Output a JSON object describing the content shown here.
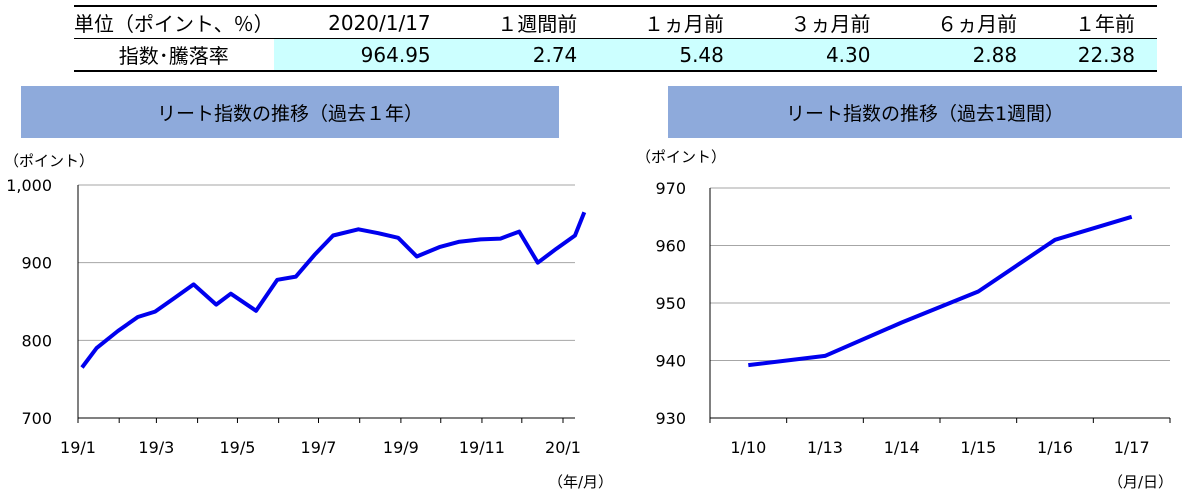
{
  "table": {
    "header": [
      "単位（ポイント、％）",
      "2020/1/17",
      "１週間前",
      "１ヵ月前",
      "３ヵ月前",
      "６ヵ月前",
      "１年前"
    ],
    "row_label": "指数･騰落率",
    "values": [
      "964.95",
      "2.74",
      "5.48",
      "4.30",
      "2.88",
      "22.38"
    ]
  },
  "colors": {
    "line": "#0000ee",
    "title_bg": "#8eaadb",
    "highlight": "#ccffff",
    "grid": "#a6a6a6"
  },
  "chart_data": [
    {
      "type": "line",
      "title": "リート指数の推移（過去１年）",
      "ylabel": "（ポイント）",
      "xlabel": "（年/月）",
      "ylim": [
        700,
        1000
      ],
      "yticks": [
        "700",
        "800",
        "900",
        "1,000"
      ],
      "xticks": [
        "19/1",
        "19/3",
        "19/5",
        "19/7",
        "19/9",
        "19/11",
        "20/1"
      ],
      "series": [
        {
          "name": "",
          "x": [
            "2019-01-04",
            "2019-01-15",
            "2019-01-31",
            "2019-02-15",
            "2019-02-28",
            "2019-03-15",
            "2019-03-29",
            "2019-04-15",
            "2019-04-26",
            "2019-05-15",
            "2019-05-31",
            "2019-06-14",
            "2019-06-28",
            "2019-07-12",
            "2019-07-31",
            "2019-08-15",
            "2019-08-30",
            "2019-09-13",
            "2019-09-30",
            "2019-10-15",
            "2019-10-31",
            "2019-11-15",
            "2019-11-29",
            "2019-12-13",
            "2019-12-27",
            "2020-01-10",
            "2020-01-17"
          ],
          "values": [
            765,
            790,
            812,
            830,
            837,
            855,
            872,
            846,
            860,
            838,
            878,
            882,
            910,
            935,
            943,
            938,
            932,
            908,
            920,
            927,
            930,
            931,
            940,
            900,
            918,
            935,
            965
          ]
        }
      ]
    },
    {
      "type": "line",
      "title": "リート指数の推移（過去1週間）",
      "ylabel": "（ポイント）",
      "xlabel": "（月/日）",
      "ylim": [
        930,
        970
      ],
      "yticks": [
        "930",
        "940",
        "950",
        "960",
        "970"
      ],
      "categories": [
        "1/10",
        "1/13",
        "1/14",
        "1/15",
        "1/16",
        "1/17"
      ],
      "series": [
        {
          "name": "",
          "values": [
            939.2,
            940.8,
            946.6,
            952.0,
            961.0,
            965.0
          ]
        }
      ]
    }
  ]
}
